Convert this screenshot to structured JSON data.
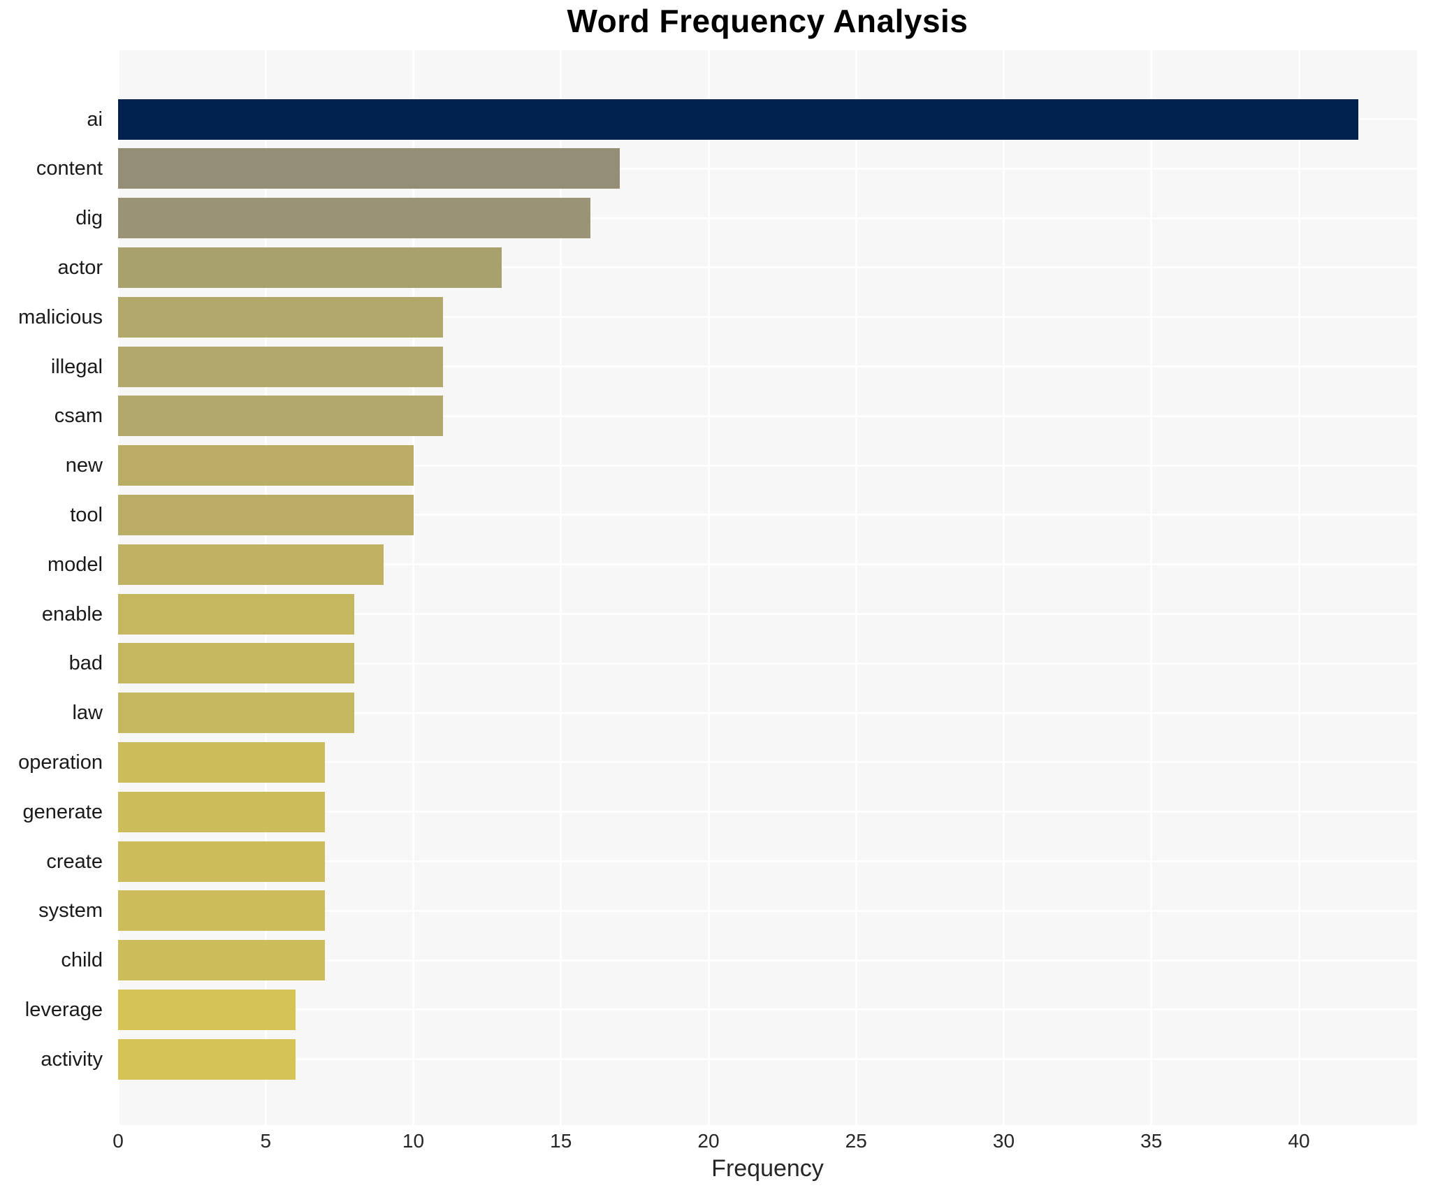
{
  "chart_data": {
    "type": "bar",
    "orientation": "horizontal",
    "title": "Word Frequency Analysis",
    "xlabel": "Frequency",
    "ylabel": "",
    "categories": [
      "ai",
      "content",
      "dig",
      "actor",
      "malicious",
      "illegal",
      "csam",
      "new",
      "tool",
      "model",
      "enable",
      "bad",
      "law",
      "operation",
      "generate",
      "create",
      "system",
      "child",
      "leverage",
      "activity"
    ],
    "values": [
      42,
      17,
      16,
      13,
      11,
      11,
      11,
      10,
      10,
      9,
      8,
      8,
      8,
      7,
      7,
      7,
      7,
      7,
      6,
      6
    ],
    "bar_colors": [
      "#01224f",
      "#948e77",
      "#9a9375",
      "#a8a06d",
      "#b2a86a",
      "#b2a86a",
      "#b2a86a",
      "#b9ad65",
      "#b9ad65",
      "#bfb262",
      "#c4b75f",
      "#c4b75f",
      "#c4b75f",
      "#ccbd5a",
      "#ccbd5a",
      "#ccbd5a",
      "#ccbd5a",
      "#ccbd5a",
      "#d5c455",
      "#d5c455"
    ],
    "xlim": [
      0,
      44
    ],
    "xticks": [
      0,
      5,
      10,
      15,
      20,
      25,
      30,
      35,
      40
    ],
    "grid": true,
    "legend": false,
    "plot_background": "#f7f7f7",
    "gridline_color": "#ffffff",
    "title_color": "#000000",
    "tick_label_color": "#262626",
    "category_label_color": "#1a1a1a"
  }
}
